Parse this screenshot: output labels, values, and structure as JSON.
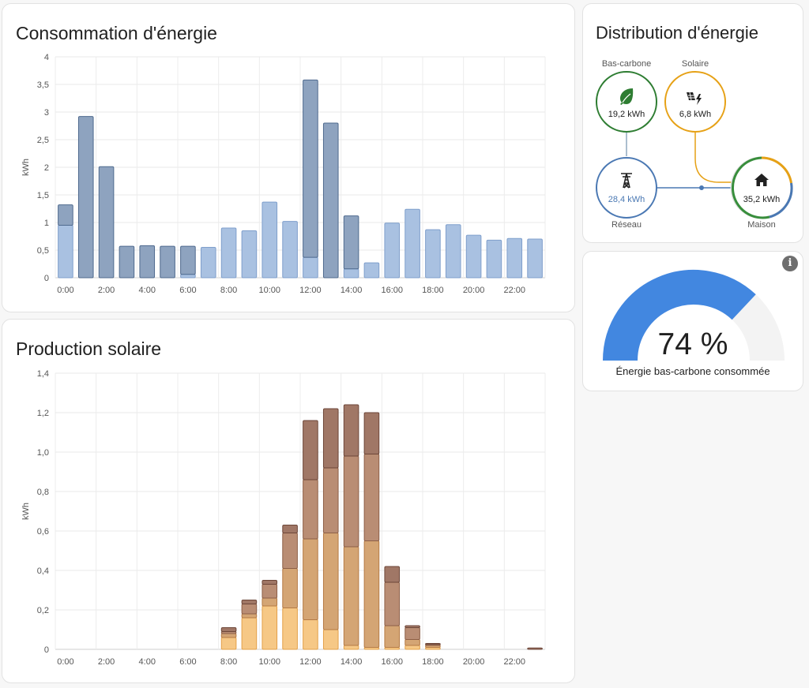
{
  "consumption": {
    "title": "Consommation d'énergie",
    "chart_data": {
      "type": "bar",
      "stacked": true,
      "ylabel": "kWh",
      "ylim": [
        0,
        4
      ],
      "yticks": [
        "0",
        "0,5",
        "1",
        "1,5",
        "2",
        "2,5",
        "3",
        "3,5",
        "4"
      ],
      "categories": [
        "0:00",
        "1:00",
        "2:00",
        "3:00",
        "4:00",
        "5:00",
        "6:00",
        "7:00",
        "8:00",
        "9:00",
        "10:00",
        "11:00",
        "12:00",
        "13:00",
        "14:00",
        "15:00",
        "16:00",
        "17:00",
        "18:00",
        "19:00",
        "20:00",
        "21:00",
        "22:00",
        "23:00"
      ],
      "xtick_labels": [
        "0:00",
        "",
        "2:00",
        "",
        "4:00",
        "",
        "6:00",
        "",
        "8:00",
        "",
        "10:00",
        "",
        "12:00",
        "",
        "14:00",
        "",
        "16:00",
        "",
        "18:00",
        "",
        "20:00",
        "",
        "22:00",
        ""
      ],
      "series": [
        {
          "color": "#a9c1e1",
          "stroke": "#7f9fcc",
          "values": [
            0.95,
            0,
            0,
            0,
            0,
            0,
            0.06,
            0.55,
            0.9,
            0.85,
            1.37,
            1.02,
            0.37,
            0,
            0.16,
            0.27,
            0.99,
            1.24,
            0.87,
            0.96,
            0.77,
            0.68,
            0.71,
            0.7
          ]
        },
        {
          "color": "#8ea3bf",
          "stroke": "#4f6a8e",
          "values": [
            0.37,
            2.92,
            2.01,
            0.57,
            0.58,
            0.57,
            0.51,
            0,
            0,
            0,
            0,
            0,
            3.21,
            2.8,
            0.96,
            0,
            0,
            0,
            0,
            0,
            0,
            0,
            0,
            0
          ]
        }
      ]
    }
  },
  "solar": {
    "title": "Production solaire",
    "chart_data": {
      "type": "bar",
      "stacked": true,
      "ylabel": "kWh",
      "ylim": [
        0,
        1.4
      ],
      "yticks": [
        "0",
        "0,2",
        "0,4",
        "0,6",
        "0,8",
        "1,0",
        "1,2",
        "1,4"
      ],
      "categories": [
        "0:00",
        "1:00",
        "2:00",
        "3:00",
        "4:00",
        "5:00",
        "6:00",
        "7:00",
        "8:00",
        "9:00",
        "10:00",
        "11:00",
        "12:00",
        "13:00",
        "14:00",
        "15:00",
        "16:00",
        "17:00",
        "18:00",
        "19:00",
        "20:00",
        "21:00",
        "22:00",
        "23:00"
      ],
      "xtick_labels": [
        "0:00",
        "",
        "2:00",
        "",
        "4:00",
        "",
        "6:00",
        "",
        "8:00",
        "",
        "10:00",
        "",
        "12:00",
        "",
        "14:00",
        "",
        "16:00",
        "",
        "18:00",
        "",
        "20:00",
        "",
        "22:00",
        ""
      ],
      "series": [
        {
          "color": "#f6c886",
          "stroke": "#e3a14a",
          "values": [
            0,
            0,
            0,
            0,
            0,
            0,
            0,
            0,
            0.06,
            0.16,
            0.22,
            0.21,
            0.15,
            0.1,
            0.02,
            0.01,
            0.01,
            0.02,
            0.01,
            0,
            0,
            0,
            0,
            0
          ]
        },
        {
          "color": "#d4a574",
          "stroke": "#b57a45",
          "values": [
            0,
            0,
            0,
            0,
            0,
            0,
            0,
            0,
            0.02,
            0.02,
            0.04,
            0.2,
            0.41,
            0.49,
            0.5,
            0.54,
            0.11,
            0.03,
            0.01,
            0,
            0,
            0,
            0,
            0
          ]
        },
        {
          "color": "#b98d74",
          "stroke": "#8d5f47",
          "values": [
            0,
            0,
            0,
            0,
            0,
            0,
            0,
            0,
            0.01,
            0.05,
            0.07,
            0.18,
            0.3,
            0.33,
            0.46,
            0.44,
            0.22,
            0.06,
            0.005,
            0,
            0,
            0,
            0,
            0
          ]
        },
        {
          "color": "#a07766",
          "stroke": "#6d4638",
          "values": [
            0,
            0,
            0,
            0,
            0,
            0,
            0,
            0,
            0.02,
            0.02,
            0.02,
            0.04,
            0.3,
            0.3,
            0.26,
            0.21,
            0.08,
            0.01,
            0.005,
            0,
            0,
            0,
            0,
            0.007
          ]
        }
      ]
    }
  },
  "distribution": {
    "title": "Distribution d'énergie",
    "low_carbon": {
      "label": "Bas-carbone",
      "value": "19,2 kWh",
      "icon": "leaf-icon",
      "color": "#2e7d32"
    },
    "solar": {
      "label": "Solaire",
      "value": "6,8 kWh",
      "icon": "solar-panel-icon",
      "color": "#e6a116"
    },
    "grid": {
      "label": "Réseau",
      "value": "28,4 kWh",
      "icon": "transmission-tower-icon",
      "color": "#4a78b3"
    },
    "home": {
      "label": "Maison",
      "value": "35,2 kWh",
      "icon": "home-icon",
      "color": "#212121"
    }
  },
  "gauge": {
    "value": 74,
    "value_text": "74 %",
    "label": "Énergie bas-carbone consommée",
    "color": "#4287e0",
    "track_color": "#f3f3f3",
    "info_icon": "info-icon"
  }
}
